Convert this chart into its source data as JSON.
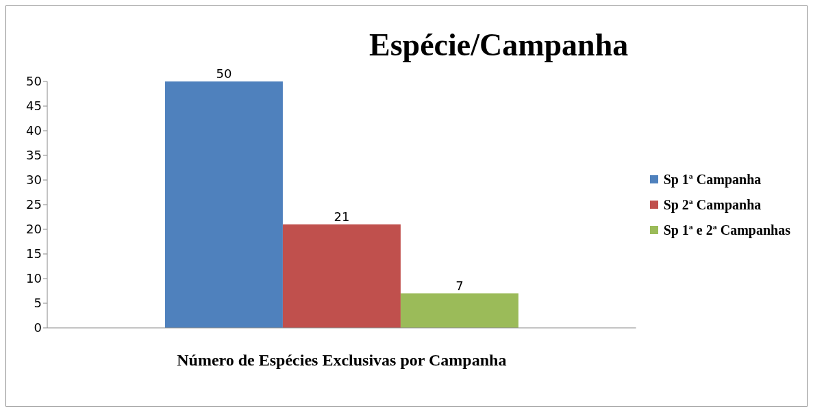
{
  "chart_data": {
    "type": "bar",
    "title": "Espécie/Campanha",
    "categories": [
      "Número de Espécies Exclusivas por Campanha"
    ],
    "series": [
      {
        "name": "Sp 1ª Campanha",
        "color": "#4f81bd",
        "values": [
          50
        ]
      },
      {
        "name": "Sp 2ª Campanha",
        "color": "#c0504d",
        "values": [
          21
        ]
      },
      {
        "name": "Sp 1ª e 2ª Campanhas",
        "color": "#9bbb59",
        "values": [
          7
        ]
      }
    ],
    "ylim": [
      0,
      50
    ],
    "yticks": [
      0,
      5,
      10,
      15,
      20,
      25,
      30,
      35,
      40,
      45,
      50
    ],
    "grid": false,
    "legend": "right",
    "data_labels": true
  }
}
